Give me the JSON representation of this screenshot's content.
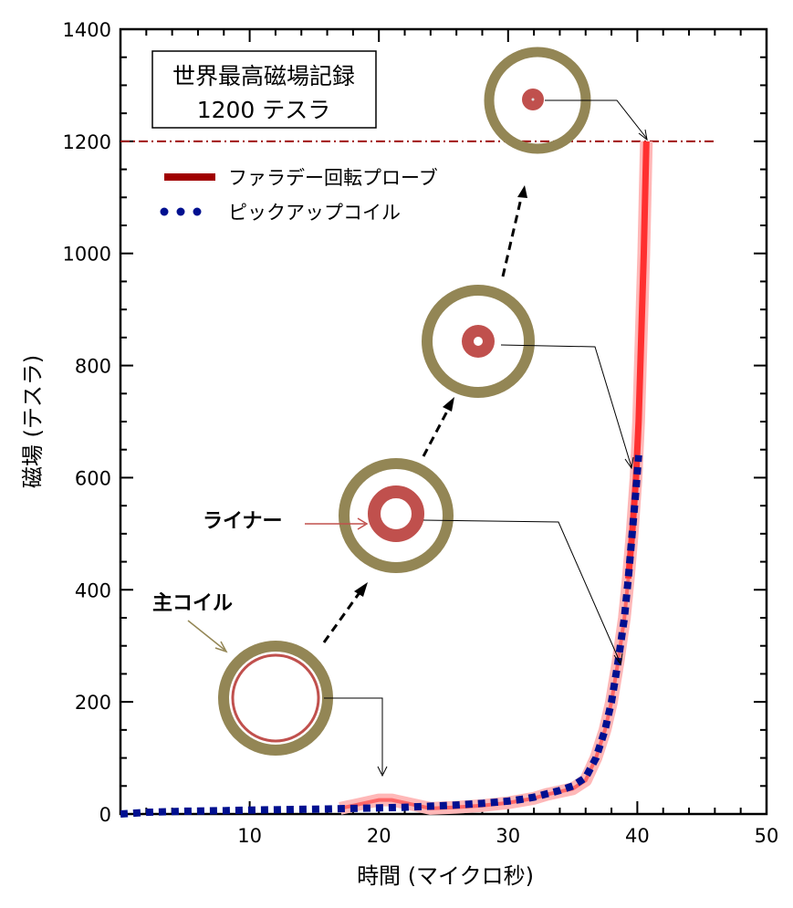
{
  "chart_data": {
    "type": "line",
    "title": "",
    "xlabel": "時間 (マイクロ秒)",
    "ylabel": "磁場 (テスラ)",
    "xlim": [
      0,
      50
    ],
    "ylim": [
      0,
      1400
    ],
    "xticks": [
      10,
      20,
      30,
      40,
      50
    ],
    "yticks": [
      0,
      200,
      400,
      600,
      800,
      1000,
      1200,
      1400
    ],
    "grid": false,
    "legend_position": "top-left",
    "record_box": {
      "line1": "世界最高磁場記録",
      "line2": "1200 テスラ"
    },
    "reference_line": {
      "y": 1200,
      "color": "#a01010",
      "style": "dash-dot"
    },
    "series": [
      {
        "name": "ファラデー回転プローブ",
        "color": "#a00000",
        "plot_color": "#ff3030",
        "style": "solid",
        "x": [
          17,
          18,
          19,
          20,
          21,
          22,
          23,
          24,
          26,
          28,
          30,
          32,
          33,
          34,
          35,
          36,
          36.8,
          37.5,
          38,
          38.5,
          39,
          39.3,
          39.6,
          39.9,
          40.1,
          40.3,
          40.5,
          40.7
        ],
        "y": [
          10,
          15,
          20,
          25,
          25,
          20,
          15,
          10,
          12,
          15,
          20,
          28,
          35,
          40,
          45,
          60,
          100,
          150,
          200,
          270,
          350,
          420,
          500,
          600,
          700,
          850,
          1000,
          1200
        ]
      },
      {
        "name": "ピックアップコイル",
        "color": "#001090",
        "style": "dotted",
        "x": [
          0,
          2,
          5,
          8,
          10,
          13,
          16,
          18,
          20,
          22,
          24,
          26,
          28,
          30,
          31,
          32,
          33,
          34,
          35,
          36,
          36.8,
          37.5,
          38,
          38.5,
          39,
          39.3,
          39.6,
          39.9,
          40.1
        ],
        "y": [
          0,
          3,
          5,
          6,
          7,
          8,
          9,
          10,
          11,
          12,
          14,
          16,
          19,
          23,
          26,
          30,
          36,
          42,
          50,
          65,
          100,
          150,
          200,
          270,
          350,
          420,
          500,
          580,
          640
        ]
      }
    ],
    "annotations": {
      "main_coil": "主コイル",
      "liner": "ライナー"
    }
  },
  "colors": {
    "coil": "#938655",
    "liner": "#c0504d",
    "noise": "#ffb8b8"
  }
}
